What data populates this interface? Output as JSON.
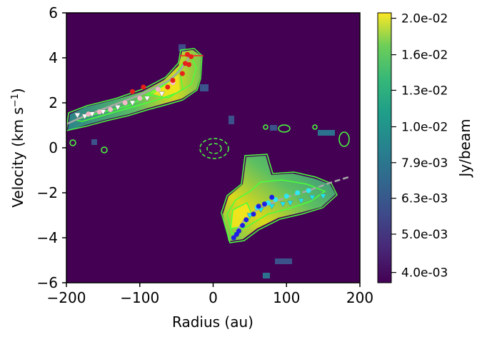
{
  "chart_data": {
    "type": "heatmap",
    "title": "",
    "xlabel": "Radius (au)",
    "ylabel_main": "Velocity (km s",
    "ylabel_sup": "−1",
    "ylabel_close": ")",
    "xlim": [
      -200,
      200
    ],
    "ylim": [
      -6,
      6
    ],
    "xticks": [
      -200,
      -100,
      0,
      100,
      200
    ],
    "xtick_labels": [
      "−200",
      "−100",
      "0",
      "100",
      "200"
    ],
    "yticks": [
      -6,
      -4,
      -2,
      0,
      2,
      4,
      6
    ],
    "ytick_labels": [
      "−6",
      "−4",
      "−2",
      "0",
      "2",
      "4",
      "6"
    ],
    "colorbar": {
      "label": "Jy/beam",
      "colormap": "viridis",
      "tick_labels": [
        "2.0e-02",
        "1.6e-02",
        "1.3e-02",
        "1.0e-02",
        "7.9e-03",
        "6.3e-03",
        "5.0e-03",
        "4.0e-03"
      ],
      "tick_fractions": [
        0.98,
        0.845,
        0.713,
        0.578,
        0.445,
        0.313,
        0.18,
        0.038
      ]
    },
    "contour_color": "#49ff3b",
    "features": {
      "blue_lobe": {
        "radius_range": [
          -195,
          -25
        ],
        "velocity_range": [
          1.0,
          4.2
        ]
      },
      "red_lobe": {
        "radius_range": [
          20,
          175
        ],
        "velocity_range": [
          -4.2,
          -1.3
        ]
      }
    },
    "points_red": [
      [
        -35,
        4.15
      ],
      [
        -30,
        4.05
      ],
      [
        -38,
        3.75
      ],
      [
        -33,
        3.7
      ],
      [
        -42,
        3.3
      ],
      [
        -55,
        3.0
      ],
      [
        -62,
        2.7
      ],
      [
        -95,
        2.7
      ],
      [
        -110,
        2.5
      ]
    ],
    "points_pink": [
      [
        -55,
        2.9
      ],
      [
        -75,
        2.6
      ],
      [
        -100,
        2.2
      ],
      [
        -120,
        2.0
      ],
      [
        -140,
        1.7
      ],
      [
        -155,
        1.6
      ],
      [
        -170,
        1.5
      ]
    ],
    "points_white_tri": [
      [
        -185,
        1.45
      ],
      [
        -175,
        1.4
      ],
      [
        -165,
        1.5
      ],
      [
        -150,
        1.6
      ],
      [
        -130,
        1.8
      ],
      [
        -110,
        2.0
      ],
      [
        -90,
        2.2
      ],
      [
        -70,
        2.4
      ]
    ],
    "points_blue": [
      [
        28,
        -4.0
      ],
      [
        32,
        -3.85
      ],
      [
        35,
        -3.7
      ],
      [
        40,
        -3.45
      ],
      [
        45,
        -3.2
      ],
      [
        55,
        -2.95
      ],
      [
        62,
        -2.6
      ],
      [
        70,
        -2.5
      ],
      [
        80,
        -2.2
      ]
    ],
    "points_cyan": [
      [
        60,
        -2.65
      ],
      [
        75,
        -2.45
      ],
      [
        85,
        -2.3
      ],
      [
        100,
        -2.15
      ],
      [
        115,
        -2.0
      ],
      [
        130,
        -1.9
      ]
    ],
    "points_cyan_tri": [
      [
        50,
        -3.0
      ],
      [
        65,
        -2.75
      ],
      [
        80,
        -2.6
      ],
      [
        95,
        -2.5
      ],
      [
        105,
        -2.45
      ],
      [
        120,
        -2.35
      ],
      [
        135,
        -2.2
      ],
      [
        150,
        -2.15
      ]
    ],
    "fit_curve_blue": [
      [
        -200,
        1.05
      ],
      [
        -180,
        1.35
      ],
      [
        -160,
        1.6
      ],
      [
        -140,
        1.85
      ],
      [
        -120,
        2.1
      ],
      [
        -100,
        2.35
      ],
      [
        -80,
        2.65
      ],
      [
        -60,
        3.0
      ],
      [
        -45,
        3.45
      ],
      [
        -35,
        3.9
      ],
      [
        -30,
        4.15
      ]
    ],
    "fit_curve_red": [
      [
        28,
        -4.0
      ],
      [
        35,
        -3.55
      ],
      [
        45,
        -3.1
      ],
      [
        60,
        -2.75
      ],
      [
        80,
        -2.45
      ],
      [
        100,
        -2.2
      ],
      [
        130,
        -1.9
      ],
      [
        160,
        -1.55
      ],
      [
        185,
        -1.3
      ]
    ]
  }
}
